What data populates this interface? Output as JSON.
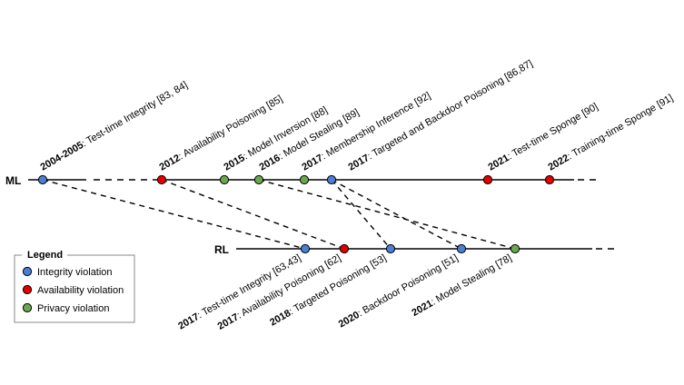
{
  "colors": {
    "integrity": "#4a7fd4",
    "availability": "#e00000",
    "privacy": "#6aa84f"
  },
  "timelines": {
    "ml": {
      "name": "ML"
    },
    "rl": {
      "name": "RL"
    }
  },
  "ml_events": [
    {
      "id": "ml-integrity-2004",
      "year": "2004-2005",
      "label": ": Test-time Integrity [83, 84]",
      "category": "integrity"
    },
    {
      "id": "ml-availability-2012",
      "year": "2012",
      "label": ": Availability Poisoning [85]",
      "category": "availability"
    },
    {
      "id": "ml-inversion-2015",
      "year": "2015",
      "label": ": Model Inversion [88]",
      "category": "privacy"
    },
    {
      "id": "ml-stealing-2016",
      "year": "2016",
      "label": ": Model Stealing [89]",
      "category": "privacy"
    },
    {
      "id": "ml-membership-2017",
      "year": "2017",
      "label": ": Membership Inference [92]",
      "category": "privacy"
    },
    {
      "id": "ml-backdoor-2017",
      "year": "2017",
      "label": ": Targeted and Backdoor Poisoning [86,87]",
      "category": "integrity"
    },
    {
      "id": "ml-sponge-2021",
      "year": "2021",
      "label": ": Test-time Sponge [90]",
      "category": "availability"
    },
    {
      "id": "ml-sponge-2022",
      "year": "2022",
      "label": ": Training-time Sponge [91]",
      "category": "availability"
    }
  ],
  "rl_events": [
    {
      "id": "rl-integrity-2017",
      "year": "2017",
      "label": ": Test-time Integrity [63,43]",
      "category": "integrity"
    },
    {
      "id": "rl-availability-2017",
      "year": "2017",
      "label": ": Availability Poisoning [62]",
      "category": "availability"
    },
    {
      "id": "rl-targeted-2018",
      "year": "2018",
      "label": ": Targeted Poisoning [53]",
      "category": "integrity"
    },
    {
      "id": "rl-backdoor-2020",
      "year": "2020",
      "label": ": Backdoor Poisoning [51]",
      "category": "integrity"
    },
    {
      "id": "rl-stealing-2021",
      "year": "2021",
      "label": ": Model Stealing [78]",
      "category": "privacy"
    }
  ],
  "legend": {
    "title": "Legend",
    "items": [
      {
        "category": "integrity",
        "label": "Integrity violation"
      },
      {
        "category": "availability",
        "label": "Availability violation"
      },
      {
        "category": "privacy",
        "label": "Privacy violation"
      }
    ]
  }
}
